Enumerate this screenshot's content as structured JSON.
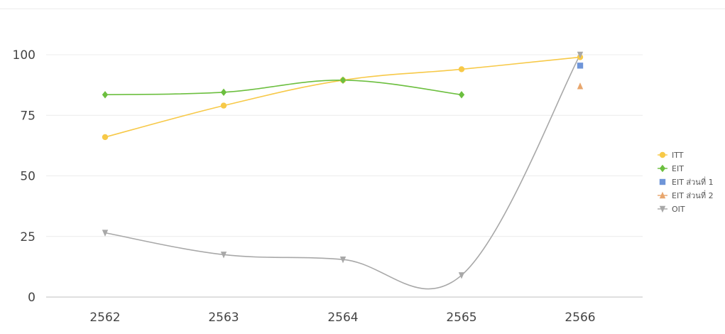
{
  "chart_data": {
    "type": "line",
    "categories": [
      "2562",
      "2563",
      "2564",
      "2565",
      "2566"
    ],
    "ylim": [
      0,
      100
    ],
    "yticks": [
      "0",
      "25",
      "50",
      "75",
      "100"
    ],
    "grid": true,
    "legend_position": "right",
    "series": [
      {
        "name": "ITT",
        "color": "#f7c948",
        "marker": "circle",
        "values": [
          66,
          79,
          89.5,
          94,
          99
        ]
      },
      {
        "name": "EIT",
        "color": "#6cbf3f",
        "marker": "diamond",
        "values": [
          83.5,
          84.5,
          89.5,
          83.5,
          null
        ]
      },
      {
        "name": "EIT ส่วนที่ 1",
        "color": "#6f95d8",
        "marker": "square",
        "values": [
          null,
          null,
          null,
          null,
          95.5
        ]
      },
      {
        "name": "EIT ส่วนที่ 2",
        "color": "#e8a66d",
        "marker": "triangle-up",
        "values": [
          null,
          null,
          null,
          null,
          87
        ]
      },
      {
        "name": "OIT",
        "color": "#a8a8a8",
        "marker": "triangle-down",
        "values": [
          26.5,
          17.5,
          15.5,
          9,
          100
        ]
      }
    ]
  }
}
